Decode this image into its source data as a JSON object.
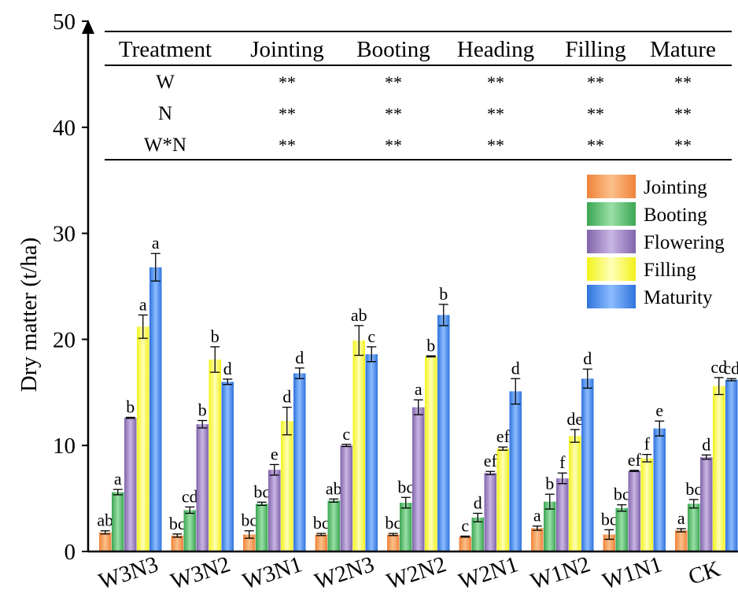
{
  "chart_data": {
    "type": "bar",
    "ylabel": "Dry matter (t/ha)",
    "ylim": [
      0,
      50
    ],
    "yticks": [
      0,
      10,
      20,
      30,
      40,
      50
    ],
    "grid": false,
    "legend_position": "right, below the table",
    "categories": [
      "W3N3",
      "W3N2",
      "W3N1",
      "W2N3",
      "W2N2",
      "W2N1",
      "W1N2",
      "W1N1",
      "CK"
    ],
    "series": [
      {
        "name": "Jointing",
        "color": "#f5a055",
        "values": [
          1.8,
          1.5,
          1.6,
          1.6,
          1.6,
          1.4,
          2.2,
          1.6,
          2.0
        ],
        "errors": [
          0.15,
          0.15,
          0.35,
          0.1,
          0.1,
          0.05,
          0.2,
          0.45,
          0.15
        ],
        "letters": [
          "ab",
          "bc",
          "bc",
          "bc",
          "bc",
          "c",
          "a",
          "bc",
          "a"
        ]
      },
      {
        "name": "Booting",
        "color": "#5cc26e",
        "values": [
          5.6,
          3.9,
          4.5,
          4.8,
          4.6,
          3.2,
          4.7,
          4.1,
          4.5
        ],
        "errors": [
          0.25,
          0.3,
          0.15,
          0.15,
          0.5,
          0.4,
          0.7,
          0.3,
          0.4
        ],
        "letters": [
          "a",
          "cd",
          "bc",
          "ab",
          "bc",
          "d",
          "b",
          "bc",
          "bc"
        ]
      },
      {
        "name": "Flowering",
        "color": "#9f86c7",
        "values": [
          12.6,
          12.0,
          7.7,
          10.0,
          13.6,
          7.4,
          6.9,
          7.6,
          8.9
        ],
        "errors": [
          0.05,
          0.35,
          0.5,
          0.1,
          0.7,
          0.15,
          0.5,
          0.05,
          0.2
        ],
        "letters": [
          "b",
          "b",
          "e",
          "c",
          "a",
          "ef",
          "f",
          "ef",
          "d"
        ]
      },
      {
        "name": "Filling",
        "color": "#f5f542",
        "values": [
          21.2,
          18.1,
          12.3,
          19.9,
          18.4,
          9.7,
          10.9,
          8.8,
          15.6
        ],
        "errors": [
          1.1,
          1.2,
          1.3,
          1.4,
          0.05,
          0.15,
          0.6,
          0.35,
          0.8
        ],
        "letters": [
          "a",
          "b",
          "d",
          "ab",
          "b",
          "ef",
          "de",
          "f",
          "cd"
        ]
      },
      {
        "name": "Maturity",
        "color": "#4a8df0",
        "values": [
          26.8,
          16.0,
          16.8,
          18.6,
          22.3,
          15.1,
          16.3,
          11.6,
          16.2
        ],
        "errors": [
          1.3,
          0.25,
          0.5,
          0.7,
          1.0,
          1.2,
          0.9,
          0.7,
          0.1
        ],
        "letters": [
          "a",
          "d",
          "d",
          "c",
          "b",
          "d",
          "d",
          "e",
          "cd"
        ]
      }
    ],
    "table": {
      "headers": [
        "Treatment",
        "Jointing",
        "Booting",
        "Heading",
        "Filling",
        "Mature"
      ],
      "rows": [
        [
          "W",
          "**",
          "**",
          "**",
          "**",
          "**"
        ],
        [
          "N",
          "**",
          "**",
          "**",
          "**",
          "**"
        ],
        [
          "W*N",
          "**",
          "**",
          "**",
          "**",
          "**"
        ]
      ]
    }
  }
}
